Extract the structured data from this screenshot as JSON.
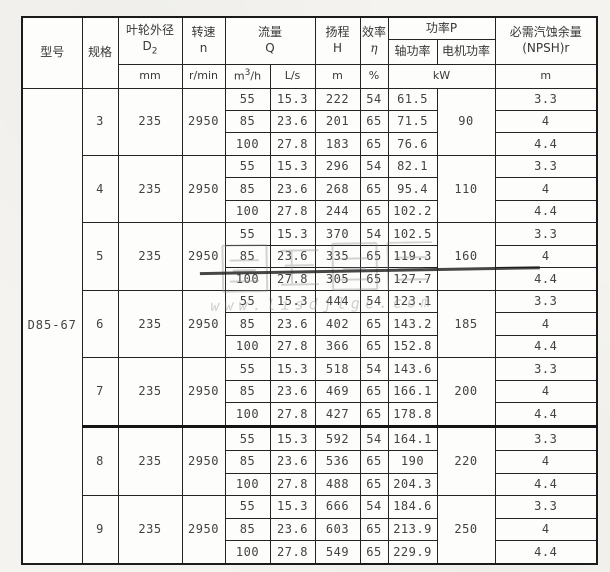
{
  "header": {
    "model": "型号",
    "spec": "规格",
    "impeller_label": "叶轮外径",
    "impeller_sym": "D",
    "impeller_sub": "2",
    "speed_label": "转速",
    "speed_sym": "n",
    "flow_label": "流量",
    "flow_sym": "Q",
    "head_label": "扬程",
    "head_sym": "H",
    "eff_label": "效率",
    "eff_sym": "η",
    "power_label": "功率P",
    "shaft_label": "轴功率",
    "motor_label": "电机功率",
    "npsh_label": "必需汽蚀余量",
    "npsh_sym": "(NPSH)r",
    "units": {
      "mm": "mm",
      "rpm": "r/min",
      "m3h_base": "m",
      "m3h_sup": "3",
      "m3h_rest": "/h",
      "ls": "L/s",
      "m_head": "m",
      "percent": "%",
      "kw": "kW",
      "m_npsh": "m"
    }
  },
  "model_value": "D85-67",
  "groups": [
    {
      "spec": "3",
      "impeller": "235",
      "speed": "2950",
      "motor_power": "90",
      "rows": [
        [
          "55",
          "15.3",
          "222",
          "54",
          "61.5",
          "3.3"
        ],
        [
          "85",
          "23.6",
          "201",
          "65",
          "71.5",
          "4"
        ],
        [
          "100",
          "27.8",
          "183",
          "65",
          "76.6",
          "4.4"
        ]
      ]
    },
    {
      "spec": "4",
      "impeller": "235",
      "speed": "2950",
      "motor_power": "110",
      "rows": [
        [
          "55",
          "15.3",
          "296",
          "54",
          "82.1",
          "3.3"
        ],
        [
          "85",
          "23.6",
          "268",
          "65",
          "95.4",
          "4"
        ],
        [
          "100",
          "27.8",
          "244",
          "65",
          "102.2",
          "4.4"
        ]
      ]
    },
    {
      "spec": "5",
      "impeller": "235",
      "speed": "2950",
      "motor_power": "160",
      "rows": [
        [
          "55",
          "15.3",
          "370",
          "54",
          "102.5",
          "3.3"
        ],
        [
          "85",
          "23.6",
          "335",
          "65",
          "119.3",
          "4"
        ],
        [
          "100",
          "27.8",
          "305",
          "65",
          "127.7",
          "4.4"
        ]
      ]
    },
    {
      "spec": "6",
      "impeller": "235",
      "speed": "2950",
      "motor_power": "185",
      "rows": [
        [
          "55",
          "15.3",
          "444",
          "54",
          "123.1",
          "3.3"
        ],
        [
          "85",
          "23.6",
          "402",
          "65",
          "143.2",
          "4"
        ],
        [
          "100",
          "27.8",
          "366",
          "65",
          "152.8",
          "4.4"
        ]
      ]
    },
    {
      "spec": "7",
      "impeller": "235",
      "speed": "2950",
      "motor_power": "200",
      "rows": [
        [
          "55",
          "15.3",
          "518",
          "54",
          "143.6",
          "3.3"
        ],
        [
          "85",
          "23.6",
          "469",
          "65",
          "166.1",
          "4"
        ],
        [
          "100",
          "27.8",
          "427",
          "65",
          "178.8",
          "4.4"
        ]
      ]
    },
    {
      "spec": "8",
      "impeller": "235",
      "speed": "2950",
      "motor_power": "220",
      "rows": [
        [
          "55",
          "15.3",
          "592",
          "54",
          "164.1",
          "3.3"
        ],
        [
          "85",
          "23.6",
          "536",
          "65",
          "190",
          "4"
        ],
        [
          "100",
          "27.8",
          "488",
          "65",
          "204.3",
          "4.4"
        ]
      ]
    },
    {
      "spec": "9",
      "impeller": "235",
      "speed": "2950",
      "motor_power": "250",
      "rows": [
        [
          "55",
          "15.3",
          "666",
          "54",
          "184.6",
          "3.3"
        ],
        [
          "85",
          "23.6",
          "603",
          "65",
          "213.9",
          "4"
        ],
        [
          "100",
          "27.8",
          "549",
          "65",
          "229.9",
          "4.4"
        ]
      ]
    }
  ],
  "watermark": {
    "url": "www.lisdjlgc.com"
  }
}
